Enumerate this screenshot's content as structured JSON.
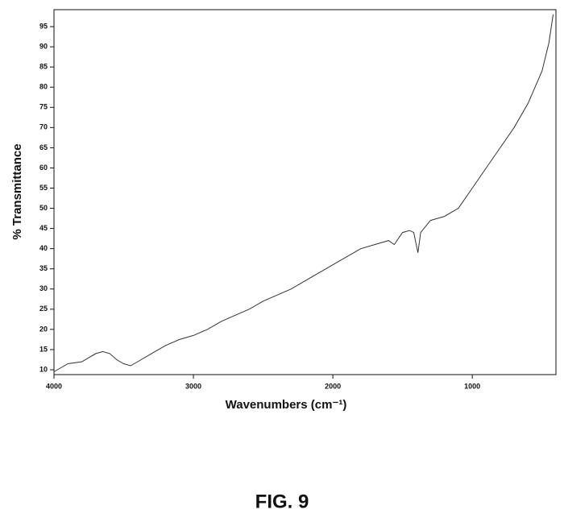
{
  "chart_data": {
    "type": "line",
    "caption": "FIG. 9",
    "xlabel": "Wavenumbers (cm⁻¹)",
    "ylabel": "% Transmittance",
    "x": [
      4000,
      3900,
      3800,
      3700,
      3650,
      3600,
      3550,
      3500,
      3450,
      3400,
      3300,
      3200,
      3100,
      3000,
      2900,
      2800,
      2700,
      2600,
      2500,
      2400,
      2300,
      2200,
      2100,
      2000,
      1900,
      1800,
      1700,
      1600,
      1560,
      1500,
      1450,
      1420,
      1390,
      1370,
      1300,
      1200,
      1100,
      1000,
      900,
      800,
      700,
      600,
      500,
      450,
      420
    ],
    "series": [
      {
        "name": "Transmittance",
        "color": "#333333",
        "values": [
          9.5,
          11.5,
          12,
          14,
          14.5,
          14,
          12.5,
          11.5,
          11,
          12,
          14,
          16,
          17.5,
          18.5,
          20,
          22,
          23.5,
          25,
          27,
          28.5,
          30,
          32,
          34,
          36,
          38,
          40,
          41,
          42,
          41,
          44,
          44.5,
          44,
          39,
          44,
          47,
          48,
          50,
          55,
          60,
          65,
          70,
          76,
          84,
          91,
          98
        ]
      }
    ],
    "xlim": [
      4000,
      400
    ],
    "xticks": [
      4000,
      3000,
      2000,
      1000
    ],
    "ylim": [
      8.8,
      99.2
    ],
    "yticks": [
      10,
      15,
      20,
      25,
      30,
      35,
      40,
      45,
      50,
      55,
      60,
      65,
      70,
      75,
      80,
      85,
      90,
      95
    ]
  }
}
